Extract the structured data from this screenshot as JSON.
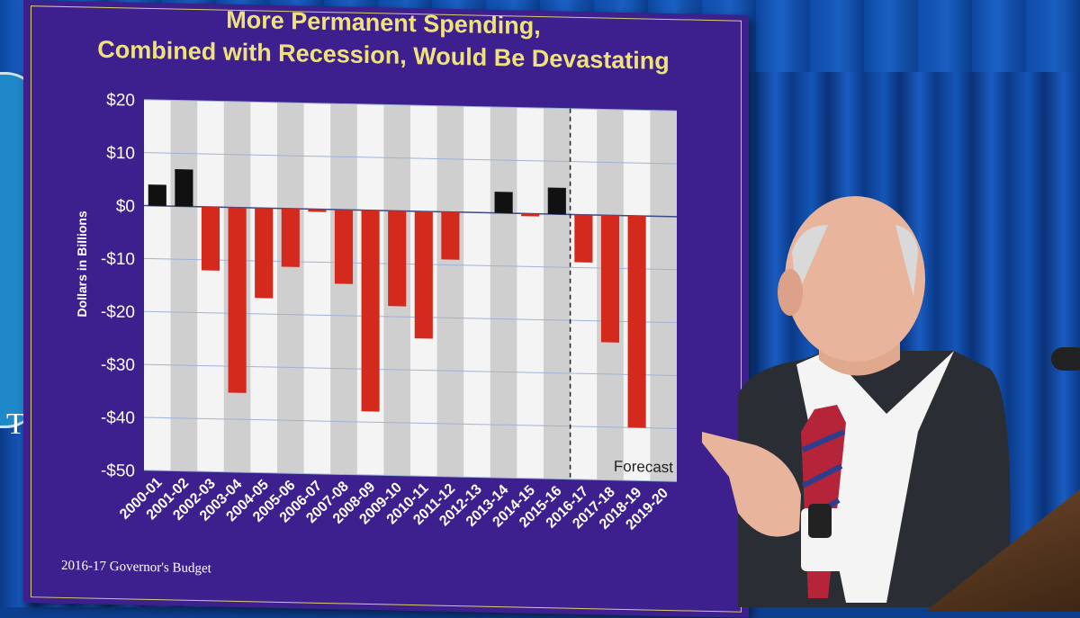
{
  "chart_data": {
    "type": "bar",
    "title_lines": [
      "More Permanent Spending,",
      "Combined with Recession, Would Be Devastating"
    ],
    "ylabel": "Dollars in Billions",
    "ylim": [
      -50,
      20
    ],
    "yticks": [
      20,
      10,
      0,
      -10,
      -20,
      -30,
      -40,
      -50
    ],
    "ytick_labels": [
      "$20",
      "$10",
      "$0",
      "-$10",
      "-$20",
      "-$30",
      "-$40",
      "-$50"
    ],
    "categories": [
      "2000-01",
      "2001-02",
      "2002-03",
      "2003-04",
      "2004-05",
      "2005-06",
      "2006-07",
      "2007-08",
      "2008-09",
      "2009-10",
      "2010-11",
      "2011-12",
      "2012-13",
      "2013-14",
      "2014-15",
      "2015-16",
      "2016-17",
      "2017-18",
      "2018-19",
      "2019-20"
    ],
    "values": [
      4,
      7,
      -12,
      -35,
      -17,
      -11,
      -0.5,
      -14,
      -38,
      -18,
      -24,
      -9,
      0,
      4,
      -0.5,
      5,
      -9,
      -24,
      -40,
      0
    ],
    "forecast_label": "Forecast",
    "forecast_start_index": 16,
    "grid": true,
    "colors": {
      "positive": "#111111",
      "negative": "#d42a1e"
    },
    "footer": "2016-17 Governor's Budget"
  },
  "colors": {
    "board": "#3d1f8e",
    "title_text": "#f0e27a",
    "axis_text": "#ffffff",
    "plot_light": "#f4f4f4",
    "plot_dark": "#cfcfcf"
  }
}
